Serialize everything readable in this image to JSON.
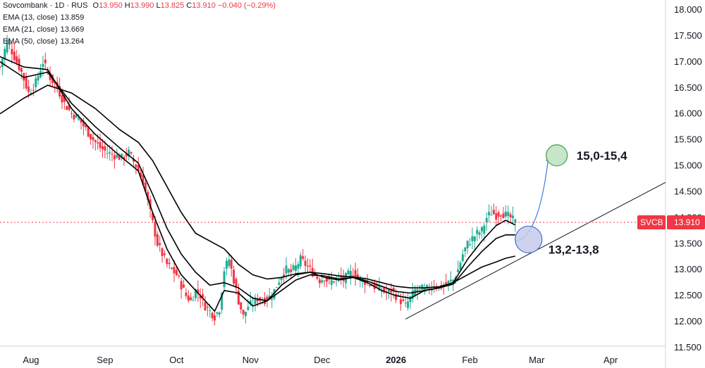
{
  "header": {
    "symbol_line": "Sovcombank · 1D · RUS",
    "ohlc": [
      {
        "key": "O",
        "value": "13.950"
      },
      {
        "key": "H",
        "value": "13.990"
      },
      {
        "key": "L",
        "value": "13.825"
      },
      {
        "key": "C",
        "value": "13.910"
      }
    ],
    "change": "−0.040 (−0.29%)"
  },
  "indicators": [
    {
      "label": "EMA (13, close)",
      "value": "13.859"
    },
    {
      "label": "EMA (21, close)",
      "value": "13.669"
    },
    {
      "label": "EMA (50, close)",
      "value": "13.264"
    }
  ],
  "colors": {
    "up": "#22ab94",
    "down": "#f23645",
    "ema": "#000000",
    "target_fill": "#c8e6c9",
    "target_stroke": "#43a047",
    "support_fill": "#c5cae9",
    "support_stroke": "#3f6fd8",
    "arrow": "#3d7bd9",
    "price_line": "#f23645"
  },
  "chart_data": {
    "type": "candlestick",
    "ticker_tag": "SVCB",
    "last_price": "13.910",
    "last_price_value": 13.91,
    "y_axis": {
      "min": 11.5,
      "max": 18.0,
      "ticks": [
        "11.500",
        "12.000",
        "12.500",
        "13.000",
        "13.500",
        "14.000",
        "14.500",
        "15.000",
        "15.500",
        "16.000",
        "16.500",
        "17.000",
        "17.500",
        "18.000"
      ]
    },
    "x_axis": {
      "ticks": [
        {
          "label": "Aug",
          "day": 13,
          "bold": false
        },
        {
          "label": "Sep",
          "day": 44,
          "bold": false
        },
        {
          "label": "Oct",
          "day": 74,
          "bold": false
        },
        {
          "label": "Nov",
          "day": 105,
          "bold": false
        },
        {
          "label": "Dec",
          "day": 135,
          "bold": false
        },
        {
          "label": "2026",
          "day": 166,
          "bold": true
        },
        {
          "label": "Feb",
          "day": 197,
          "bold": false
        },
        {
          "label": "Mar",
          "day": 225,
          "bold": false
        },
        {
          "label": "Apr",
          "day": 256,
          "bold": false
        }
      ],
      "day_min": 0,
      "day_max": 279
    },
    "close_path": [
      [
        0,
        16.9
      ],
      [
        3,
        17.4
      ],
      [
        6,
        17.1
      ],
      [
        9,
        16.8
      ],
      [
        12,
        16.4
      ],
      [
        15,
        16.6
      ],
      [
        18,
        17.0
      ],
      [
        21,
        16.7
      ],
      [
        24,
        16.5
      ],
      [
        27,
        16.2
      ],
      [
        30,
        16.0
      ],
      [
        33,
        15.9
      ],
      [
        36,
        15.7
      ],
      [
        39,
        15.5
      ],
      [
        42,
        15.35
      ],
      [
        45,
        15.25
      ],
      [
        48,
        15.2
      ],
      [
        51,
        15.15
      ],
      [
        54,
        15.25
      ],
      [
        57,
        15.0
      ],
      [
        60,
        14.7
      ],
      [
        62,
        14.3
      ],
      [
        64,
        13.9
      ],
      [
        66,
        13.5
      ],
      [
        68,
        13.3
      ],
      [
        70,
        13.1
      ],
      [
        72,
        13.0
      ],
      [
        74,
        12.9
      ],
      [
        76,
        12.7
      ],
      [
        78,
        12.5
      ],
      [
        80,
        12.4
      ],
      [
        82,
        12.6
      ],
      [
        84,
        12.5
      ],
      [
        86,
        12.3
      ],
      [
        88,
        12.2
      ],
      [
        90,
        12.1
      ],
      [
        92,
        12.25
      ],
      [
        94,
        13.0
      ],
      [
        96,
        13.2
      ],
      [
        98,
        12.8
      ],
      [
        100,
        12.4
      ],
      [
        102,
        12.1
      ],
      [
        104,
        12.3
      ],
      [
        106,
        12.35
      ],
      [
        108,
        12.45
      ],
      [
        110,
        12.4
      ],
      [
        112,
        12.45
      ],
      [
        114,
        12.5
      ],
      [
        116,
        12.7
      ],
      [
        118,
        12.9
      ],
      [
        120,
        13.0
      ],
      [
        122,
        12.95
      ],
      [
        124,
        13.05
      ],
      [
        126,
        13.2
      ],
      [
        128,
        13.1
      ],
      [
        130,
        13.0
      ],
      [
        132,
        12.9
      ],
      [
        134,
        12.8
      ],
      [
        136,
        12.85
      ],
      [
        138,
        12.75
      ],
      [
        140,
        12.8
      ],
      [
        142,
        12.85
      ],
      [
        144,
        12.8
      ],
      [
        146,
        12.9
      ],
      [
        148,
        12.95
      ],
      [
        150,
        12.85
      ],
      [
        152,
        12.8
      ],
      [
        154,
        12.75
      ],
      [
        156,
        12.7
      ],
      [
        158,
        12.65
      ],
      [
        160,
        12.6
      ],
      [
        162,
        12.55
      ],
      [
        164,
        12.6
      ],
      [
        166,
        12.5
      ],
      [
        168,
        12.4
      ],
      [
        170,
        12.3
      ],
      [
        172,
        12.45
      ],
      [
        174,
        12.6
      ],
      [
        176,
        12.65
      ],
      [
        178,
        12.6
      ],
      [
        180,
        12.65
      ],
      [
        182,
        12.7
      ],
      [
        184,
        12.65
      ],
      [
        186,
        12.7
      ],
      [
        188,
        12.75
      ],
      [
        190,
        12.8
      ],
      [
        192,
        13.0
      ],
      [
        194,
        13.3
      ],
      [
        196,
        13.5
      ],
      [
        198,
        13.6
      ],
      [
        200,
        13.7
      ],
      [
        202,
        13.75
      ],
      [
        204,
        14.0
      ],
      [
        206,
        14.1
      ],
      [
        208,
        14.05
      ],
      [
        210,
        14.1
      ],
      [
        212,
        14.05
      ],
      [
        214,
        14.0
      ],
      [
        216,
        13.91
      ]
    ],
    "ema13": [
      [
        0,
        17.1
      ],
      [
        10,
        16.9
      ],
      [
        20,
        16.85
      ],
      [
        30,
        16.1
      ],
      [
        40,
        15.6
      ],
      [
        50,
        15.2
      ],
      [
        58,
        14.9
      ],
      [
        64,
        14.1
      ],
      [
        70,
        13.4
      ],
      [
        76,
        12.9
      ],
      [
        80,
        12.7
      ],
      [
        86,
        12.4
      ],
      [
        90,
        12.2
      ],
      [
        94,
        12.6
      ],
      [
        100,
        12.55
      ],
      [
        106,
        12.3
      ],
      [
        112,
        12.4
      ],
      [
        118,
        12.7
      ],
      [
        124,
        12.9
      ],
      [
        130,
        12.95
      ],
      [
        136,
        12.85
      ],
      [
        142,
        12.8
      ],
      [
        148,
        12.85
      ],
      [
        154,
        12.75
      ],
      [
        160,
        12.6
      ],
      [
        166,
        12.5
      ],
      [
        172,
        12.45
      ],
      [
        178,
        12.6
      ],
      [
        184,
        12.65
      ],
      [
        190,
        12.75
      ],
      [
        196,
        13.2
      ],
      [
        202,
        13.55
      ],
      [
        208,
        13.85
      ],
      [
        212,
        13.95
      ],
      [
        216,
        13.86
      ]
    ],
    "ema21": [
      [
        0,
        17.0
      ],
      [
        10,
        16.7
      ],
      [
        20,
        16.8
      ],
      [
        30,
        16.2
      ],
      [
        40,
        15.75
      ],
      [
        50,
        15.35
      ],
      [
        58,
        15.05
      ],
      [
        64,
        14.45
      ],
      [
        70,
        13.8
      ],
      [
        76,
        13.3
      ],
      [
        82,
        12.95
      ],
      [
        88,
        12.7
      ],
      [
        94,
        12.75
      ],
      [
        100,
        12.65
      ],
      [
        106,
        12.45
      ],
      [
        112,
        12.4
      ],
      [
        118,
        12.6
      ],
      [
        124,
        12.8
      ],
      [
        130,
        12.9
      ],
      [
        136,
        12.88
      ],
      [
        142,
        12.82
      ],
      [
        148,
        12.85
      ],
      [
        154,
        12.78
      ],
      [
        160,
        12.68
      ],
      [
        166,
        12.58
      ],
      [
        172,
        12.55
      ],
      [
        178,
        12.6
      ],
      [
        184,
        12.65
      ],
      [
        190,
        12.72
      ],
      [
        196,
        13.05
      ],
      [
        202,
        13.35
      ],
      [
        208,
        13.6
      ],
      [
        212,
        13.67
      ],
      [
        216,
        13.67
      ]
    ],
    "ema50": [
      [
        0,
        16.0
      ],
      [
        10,
        16.3
      ],
      [
        20,
        16.55
      ],
      [
        30,
        16.4
      ],
      [
        40,
        16.1
      ],
      [
        50,
        15.7
      ],
      [
        58,
        15.45
      ],
      [
        64,
        15.1
      ],
      [
        70,
        14.6
      ],
      [
        76,
        14.1
      ],
      [
        82,
        13.7
      ],
      [
        88,
        13.55
      ],
      [
        94,
        13.4
      ],
      [
        100,
        13.1
      ],
      [
        106,
        12.9
      ],
      [
        112,
        12.82
      ],
      [
        118,
        12.85
      ],
      [
        124,
        12.92
      ],
      [
        130,
        12.95
      ],
      [
        136,
        12.92
      ],
      [
        142,
        12.88
      ],
      [
        148,
        12.86
      ],
      [
        154,
        12.82
      ],
      [
        160,
        12.75
      ],
      [
        166,
        12.68
      ],
      [
        172,
        12.65
      ],
      [
        178,
        12.65
      ],
      [
        184,
        12.67
      ],
      [
        190,
        12.75
      ],
      [
        196,
        12.9
      ],
      [
        202,
        13.05
      ],
      [
        208,
        13.15
      ],
      [
        212,
        13.22
      ],
      [
        216,
        13.26
      ]
    ],
    "trendline": {
      "from": [
        170,
        12.05
      ],
      "to": [
        279,
        14.68
      ]
    },
    "annotations": [
      {
        "label": "15,0-15,4",
        "day": 234,
        "price": 15.2,
        "kind": "target"
      },
      {
        "label": "13,2-13,8",
        "day": 221,
        "price": 13.5,
        "kind": "support"
      }
    ],
    "arrow": {
      "from": [
        216,
        13.55
      ],
      "ctrl": [
        226,
        13.6
      ],
      "to": [
        230,
        15.2
      ]
    }
  }
}
